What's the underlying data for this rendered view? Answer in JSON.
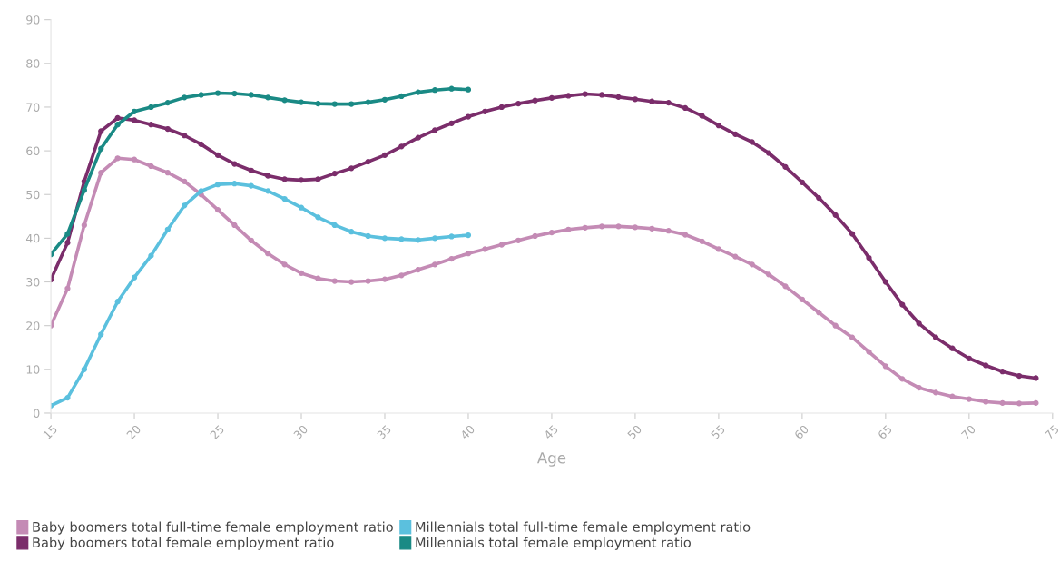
{
  "chart_data": {
    "type": "line",
    "xlabel": "Age",
    "xlim": [
      15,
      75
    ],
    "xticks": [
      15,
      20,
      25,
      30,
      35,
      40,
      45,
      50,
      55,
      60,
      65,
      70,
      75
    ],
    "ylim": [
      0,
      90
    ],
    "yticks": [
      0,
      10,
      20,
      30,
      40,
      50,
      60,
      70,
      80,
      90
    ],
    "grid": false,
    "legend": "bottom left",
    "marker": "circle",
    "line_style": "solid",
    "series": [
      {
        "name": "Baby boomers total full-time female employment ratio",
        "color": "#c48bb5",
        "x": [
          15,
          16,
          17,
          18,
          19,
          20,
          21,
          22,
          23,
          24,
          25,
          26,
          27,
          28,
          29,
          30,
          31,
          32,
          33,
          34,
          35,
          36,
          37,
          38,
          39,
          40,
          41,
          42,
          43,
          44,
          45,
          46,
          47,
          48,
          49,
          50,
          51,
          52,
          53,
          54,
          55,
          56,
          57,
          58,
          59,
          60,
          61,
          62,
          63,
          64,
          65,
          66,
          67,
          68,
          69,
          70,
          71,
          72,
          73,
          74
        ],
        "values": [
          20,
          28.5,
          43,
          55,
          58.3,
          58,
          56.5,
          55,
          53,
          50,
          46.5,
          43,
          39.5,
          36.5,
          34,
          32,
          30.8,
          30.2,
          30,
          30.2,
          30.6,
          31.5,
          32.8,
          34,
          35.3,
          36.5,
          37.5,
          38.5,
          39.5,
          40.5,
          41.3,
          42,
          42.4,
          42.7,
          42.7,
          42.5,
          42.2,
          41.7,
          40.8,
          39.3,
          37.5,
          35.8,
          34,
          31.7,
          29,
          26,
          23,
          20,
          17.3,
          14,
          10.7,
          7.8,
          5.8,
          4.7,
          3.8,
          3.2,
          2.6,
          2.3,
          2.2,
          2.3
        ]
      },
      {
        "name": "Millennials total full-time female employment ratio",
        "color": "#5bc0de",
        "x": [
          15,
          16,
          17,
          18,
          19,
          20,
          21,
          22,
          23,
          24,
          25,
          26,
          27,
          28,
          29,
          30,
          31,
          32,
          33,
          34,
          35,
          36,
          37,
          38,
          39,
          40
        ],
        "values": [
          1.7,
          3.5,
          10,
          18,
          25.5,
          31,
          36,
          42,
          47.5,
          50.8,
          52.3,
          52.5,
          52,
          50.8,
          49,
          47,
          44.8,
          43,
          41.5,
          40.5,
          40,
          39.8,
          39.6,
          40,
          40.4,
          40.7
        ]
      },
      {
        "name": "Baby boomers total female employment ratio",
        "color": "#7b2d6b",
        "x": [
          15,
          16,
          17,
          18,
          19,
          20,
          21,
          22,
          23,
          24,
          25,
          26,
          27,
          28,
          29,
          30,
          31,
          32,
          33,
          34,
          35,
          36,
          37,
          38,
          39,
          40,
          41,
          42,
          43,
          44,
          45,
          46,
          47,
          48,
          49,
          50,
          51,
          52,
          53,
          54,
          55,
          56,
          57,
          58,
          59,
          60,
          61,
          62,
          63,
          64,
          65,
          66,
          67,
          68,
          69,
          70,
          71,
          72,
          73,
          74
        ],
        "values": [
          30.5,
          39,
          53,
          64.5,
          67.5,
          67,
          66,
          65,
          63.5,
          61.5,
          59,
          57,
          55.5,
          54.3,
          53.5,
          53.3,
          53.5,
          54.8,
          56,
          57.5,
          59,
          61,
          63,
          64.7,
          66.3,
          67.8,
          69,
          70,
          70.8,
          71.5,
          72.1,
          72.6,
          73,
          72.8,
          72.3,
          71.8,
          71.3,
          71,
          69.8,
          68,
          65.8,
          63.8,
          62,
          59.5,
          56.3,
          52.8,
          49.2,
          45.3,
          41,
          35.5,
          30,
          24.8,
          20.5,
          17.3,
          14.8,
          12.5,
          10.9,
          9.5,
          8.5,
          8
        ]
      },
      {
        "name": "Millennials total female employment ratio",
        "color": "#1a8a85",
        "x": [
          15,
          16,
          17,
          18,
          19,
          20,
          21,
          22,
          23,
          24,
          25,
          26,
          27,
          28,
          29,
          30,
          31,
          32,
          33,
          34,
          35,
          36,
          37,
          38,
          39,
          40
        ],
        "values": [
          36.3,
          41,
          51,
          60.5,
          66,
          69,
          70,
          71,
          72.2,
          72.8,
          73.2,
          73.1,
          72.8,
          72.2,
          71.6,
          71.1,
          70.8,
          70.7,
          70.7,
          71.1,
          71.7,
          72.5,
          73.4,
          73.9,
          74.2,
          74
        ]
      }
    ]
  }
}
